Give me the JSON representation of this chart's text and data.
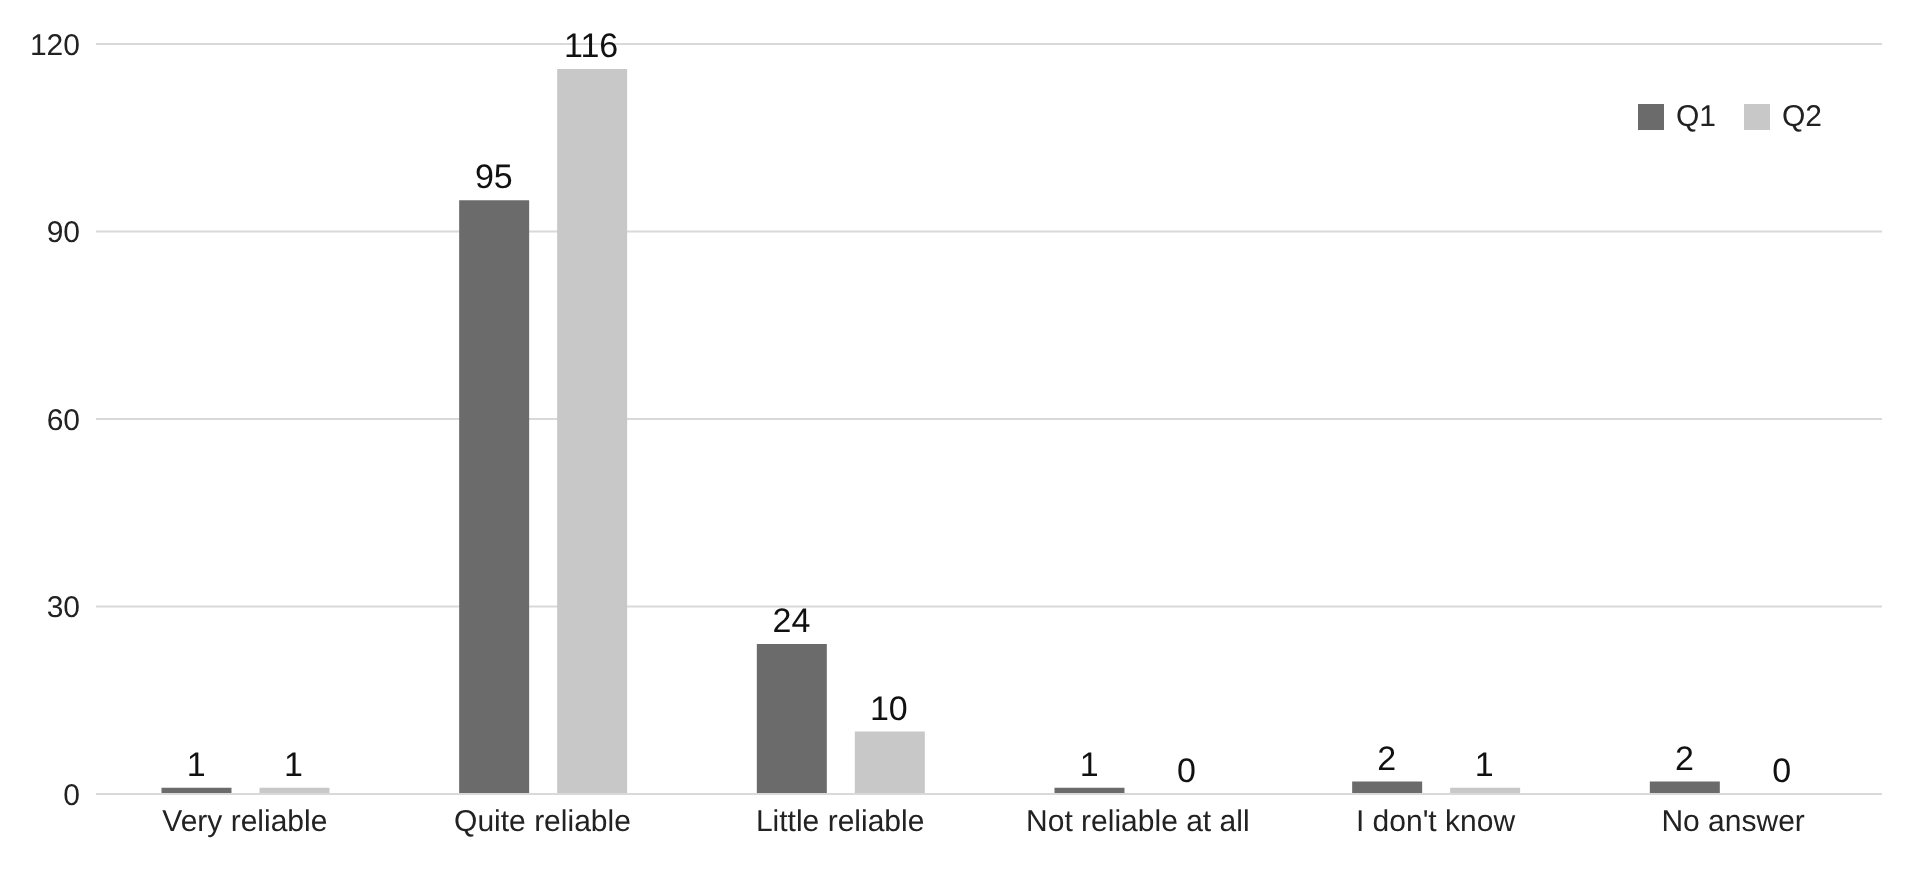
{
  "chart_data": {
    "type": "bar",
    "categories": [
      "Very reliable",
      "Quite reliable",
      "Little reliable",
      "Not reliable at all",
      "I don't know",
      "No answer"
    ],
    "series": [
      {
        "name": "Q1",
        "color": "#6b6b6b",
        "values": [
          1,
          95,
          24,
          1,
          2,
          2
        ]
      },
      {
        "name": "Q2",
        "color": "#c8c8c8",
        "values": [
          1,
          116,
          10,
          0,
          1,
          0
        ]
      }
    ],
    "ylim": [
      0,
      120
    ],
    "yticks": [
      0,
      30,
      60,
      90,
      120
    ],
    "grid": "y",
    "legend": "top right",
    "data_labels": true
  }
}
